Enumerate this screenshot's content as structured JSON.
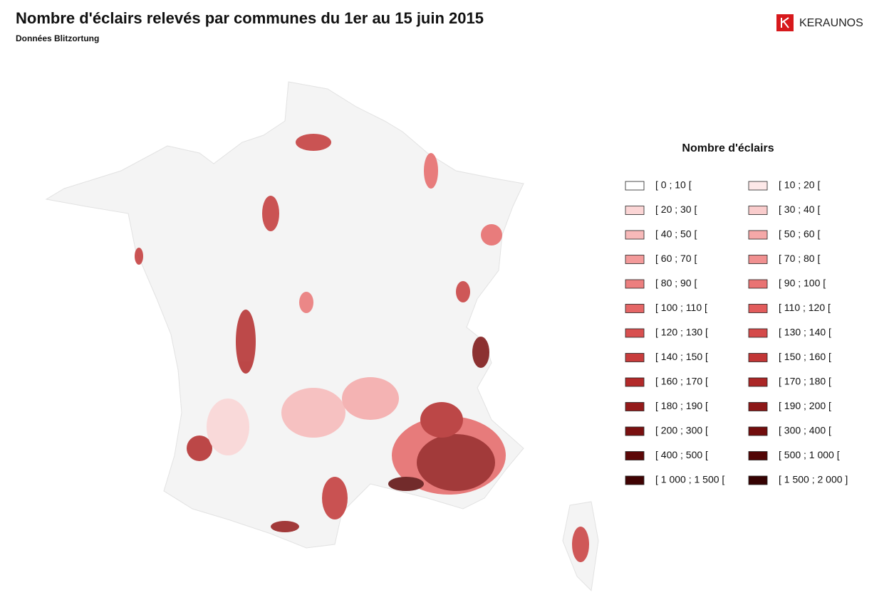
{
  "header": {
    "title": "Nombre d'éclairs relevés par communes du 1er au 15 juin 2015",
    "subtitle": "Données Blitzortung",
    "logo": "KERAUNOS"
  },
  "legend": {
    "title": "Nombre d'éclairs",
    "items": [
      {
        "label": "[ 0 ; 10 [",
        "color": "#ffffff"
      },
      {
        "label": "[ 10 ; 20 [",
        "color": "#fde8e8"
      },
      {
        "label": "[ 20 ; 30 [",
        "color": "#fbd5d5"
      },
      {
        "label": "[ 30 ; 40 [",
        "color": "#f9cccc"
      },
      {
        "label": "[ 40 ; 50 [",
        "color": "#f7b9b9"
      },
      {
        "label": "[ 50 ; 60 [",
        "color": "#f5a8a8"
      },
      {
        "label": "[ 60 ; 70 [",
        "color": "#f39a9a"
      },
      {
        "label": "[ 70 ; 80 [",
        "color": "#f09090"
      },
      {
        "label": "[ 80 ; 90 [",
        "color": "#ec7f7f"
      },
      {
        "label": "[ 90 ; 100 [",
        "color": "#e97373"
      },
      {
        "label": "[ 100 ; 110 [",
        "color": "#e56666"
      },
      {
        "label": "[ 110 ; 120 [",
        "color": "#e25c5c"
      },
      {
        "label": "[ 120 ; 130 [",
        "color": "#d85050"
      },
      {
        "label": "[ 130 ; 140 [",
        "color": "#d44a4a"
      },
      {
        "label": "[ 140 ; 150 [",
        "color": "#c83c3c"
      },
      {
        "label": "[ 150 ; 160 [",
        "color": "#c23636"
      },
      {
        "label": "[ 160 ; 170 [",
        "color": "#b32a2a"
      },
      {
        "label": "[ 170 ; 180 [",
        "color": "#ab2626"
      },
      {
        "label": "[ 180 ; 190 [",
        "color": "#941a1a"
      },
      {
        "label": "[ 190 ; 200 [",
        "color": "#8c1717"
      },
      {
        "label": "[ 200 ; 300 [",
        "color": "#7a1010"
      },
      {
        "label": "[ 300 ; 400 [",
        "color": "#720d0d"
      },
      {
        "label": "[ 400 ; 500 [",
        "color": "#5c0808"
      },
      {
        "label": "[ 500 ; 1 000 [",
        "color": "#520606"
      },
      {
        "label": "[ 1 000 ; 1 500 [",
        "color": "#400303"
      },
      {
        "label": "[ 1 500 ; 2 000 ]",
        "color": "#360202"
      }
    ]
  }
}
